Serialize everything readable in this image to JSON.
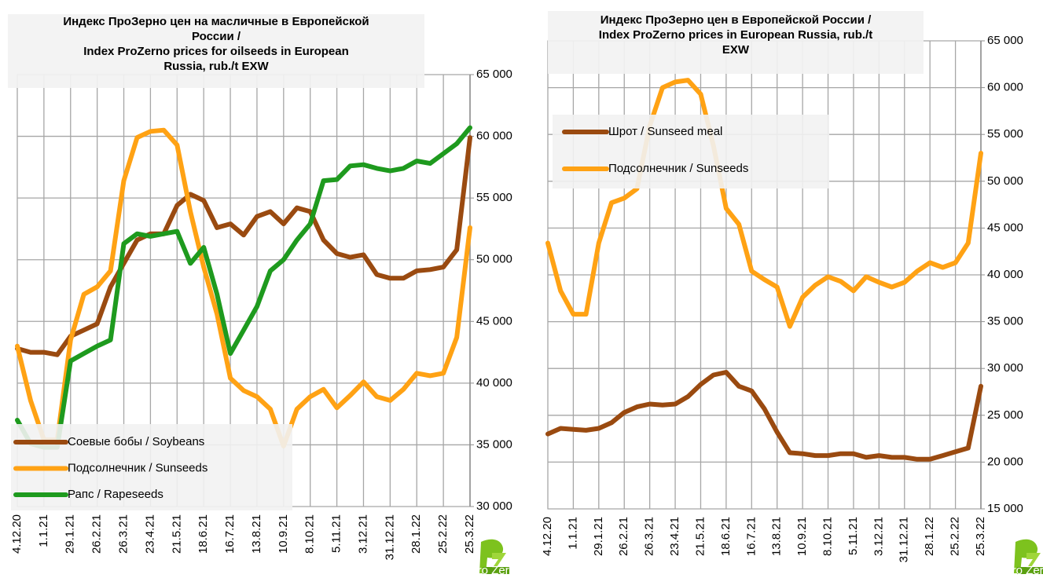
{
  "chart_data": [
    {
      "type": "line",
      "title": [
        "Индекс ПроЗерно цен на масличные в Европейской",
        "России /",
        "Index ProZerno prices for oilseeds in European",
        "Russia, rub./t EXW"
      ],
      "categories": [
        "4.12.20",
        null,
        "1.1.21",
        null,
        "29.1.21",
        null,
        "26.2.21",
        null,
        "26.3.21",
        null,
        "23.4.21",
        null,
        "21.5.21",
        null,
        "18.6.21",
        null,
        "16.7.21",
        null,
        "13.8.21",
        null,
        "10.9.21",
        null,
        "8.10.21",
        null,
        "5.11.21",
        null,
        "3.12.21",
        null,
        "31.12.21",
        null,
        "28.1.22",
        null,
        "25.2.22",
        null,
        "25.3.22"
      ],
      "series": [
        {
          "name": "Соевые бобы / Soybeans",
          "color": "#9a4a10",
          "values": [
            42800,
            42500,
            42500,
            42300,
            43800,
            44300,
            44800,
            47800,
            49700,
            51600,
            52100,
            52100,
            54400,
            55300,
            54800,
            52600,
            52900,
            52000,
            53500,
            53900,
            52900,
            54200,
            53900,
            51600,
            50500,
            50200,
            50400,
            48800,
            48500,
            48500,
            49100,
            49200,
            49400,
            50800,
            59900
          ]
        },
        {
          "name": "Подсолнечник / Sunseeds",
          "color": "#ffa214",
          "values": [
            43000,
            38600,
            35400,
            35400,
            43500,
            47200,
            47800,
            49100,
            56400,
            59900,
            60400,
            60500,
            59300,
            53900,
            49400,
            45600,
            40400,
            39400,
            38900,
            37900,
            34900,
            37900,
            38900,
            39500,
            38000,
            39000,
            40100,
            38900,
            38600,
            39500,
            40800,
            40600,
            40800,
            43700,
            52600
          ]
        },
        {
          "name": "Рапс / Rapeseeds",
          "color": "#1e9a1e",
          "values": [
            37000,
            35100,
            34800,
            34800,
            41800,
            42400,
            43000,
            43500,
            51300,
            52100,
            51900,
            52100,
            52300,
            49700,
            51000,
            47200,
            42400,
            44300,
            46200,
            49100,
            50000,
            51600,
            52900,
            56400,
            56500,
            57600,
            57700,
            57400,
            57200,
            57400,
            58000,
            57800,
            58600,
            59400,
            60700
          ]
        }
      ],
      "ylim": [
        30000,
        65000
      ],
      "yticks": [
        {
          "value": 30000,
          "label": "30 000"
        },
        {
          "value": 35000,
          "label": "35 000"
        },
        {
          "value": 40000,
          "label": "40 000"
        },
        {
          "value": 45000,
          "label": "45 000"
        },
        {
          "value": 50000,
          "label": "50 000"
        },
        {
          "value": 55000,
          "label": "55 000"
        },
        {
          "value": 60000,
          "label": "60 000"
        },
        {
          "value": 65000,
          "label": "65 000"
        }
      ],
      "grid": true,
      "legend": "lower left",
      "logo": "Pro Zerno"
    },
    {
      "type": "line",
      "title": [
        "Индекс ПроЗерно цен в Европейской России /",
        "Index ProZerno prices in European Russia, rub./t",
        "EXW"
      ],
      "categories": [
        "4.12.20",
        null,
        "1.1.21",
        null,
        "29.1.21",
        null,
        "26.2.21",
        null,
        "26.3.21",
        null,
        "23.4.21",
        null,
        "21.5.21",
        null,
        "18.6.21",
        null,
        "16.7.21",
        null,
        "13.8.21",
        null,
        "10.9.21",
        null,
        "8.10.21",
        null,
        "5.11.21",
        null,
        "3.12.21",
        null,
        "31.12.21",
        null,
        "28.1.22",
        null,
        "25.2.22",
        null,
        "25.3.22"
      ],
      "series": [
        {
          "name": "Шрот / Sunseed meal",
          "color": "#9a4a10",
          "values": [
            23000,
            23600,
            23500,
            23400,
            23600,
            24200,
            25300,
            25900,
            26200,
            26100,
            26200,
            27000,
            28300,
            29300,
            29600,
            28100,
            27600,
            25700,
            23200,
            21000,
            20900,
            20700,
            20700,
            20900,
            20900,
            20500,
            20700,
            20500,
            20500,
            20300,
            20300,
            20700,
            21100,
            21500,
            28100
          ]
        },
        {
          "name": "Подсолнечник / Sunseeds",
          "color": "#ffa214",
          "values": [
            43400,
            38300,
            35800,
            35800,
            43400,
            47700,
            48200,
            49200,
            55900,
            60000,
            60600,
            60800,
            59300,
            53800,
            47100,
            45400,
            40400,
            39500,
            38700,
            34500,
            37600,
            38900,
            39800,
            39300,
            38300,
            39800,
            39200,
            38700,
            39200,
            40400,
            41300,
            40800,
            41300,
            43400,
            53000
          ]
        }
      ],
      "ylim": [
        15000,
        65000
      ],
      "yticks": [
        {
          "value": 15000,
          "label": "15 000"
        },
        {
          "value": 20000,
          "label": "20 000"
        },
        {
          "value": 25000,
          "label": "25 000"
        },
        {
          "value": 30000,
          "label": "30 000"
        },
        {
          "value": 35000,
          "label": "35 000"
        },
        {
          "value": 40000,
          "label": "40 000"
        },
        {
          "value": 45000,
          "label": "45 000"
        },
        {
          "value": 50000,
          "label": "50 000"
        },
        {
          "value": 55000,
          "label": "55 000"
        },
        {
          "value": 60000,
          "label": "60 000"
        },
        {
          "value": 65000,
          "label": "65 000"
        }
      ],
      "grid": true,
      "legend": "upper left",
      "logo": "Pro Zerno"
    }
  ]
}
